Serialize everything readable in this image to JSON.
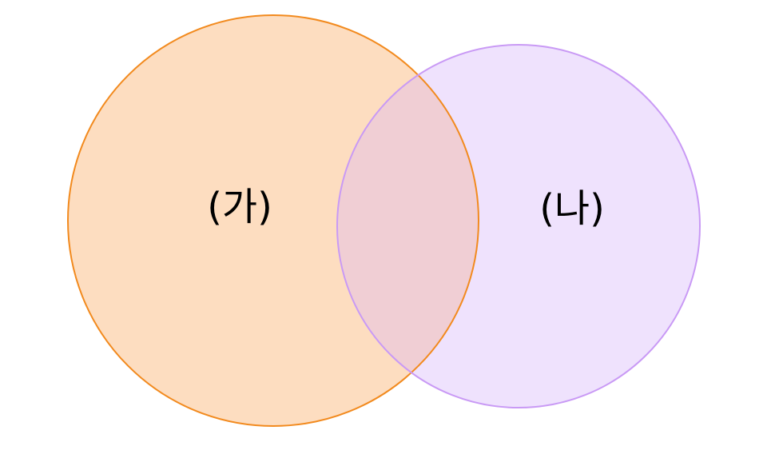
{
  "diagram": {
    "type": "venn",
    "sets": [
      {
        "label": "(가)",
        "fill_color": "#FDDDC0",
        "stroke_color": "#F28A1E"
      },
      {
        "label": "(나)",
        "fill_color": "#EFE2FD",
        "stroke_color": "#C99AF5"
      }
    ],
    "overlap_color": "#F0CED4"
  }
}
